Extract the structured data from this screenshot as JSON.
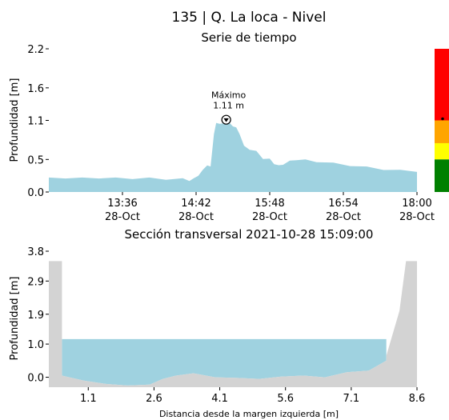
{
  "page_title": "135 | Q. La loca - Nivel",
  "chart_data": [
    {
      "type": "area",
      "title": "Serie de tiempo",
      "xlabel": "",
      "ylabel": "Profundidad [m]",
      "yticks": [
        "0.0",
        "0.5",
        "1.1",
        "1.6",
        "2.2"
      ],
      "ylim": [
        0,
        2.2
      ],
      "xticks": [
        {
          "time": "13:36",
          "date": "28-Oct"
        },
        {
          "time": "14:42",
          "date": "28-Oct"
        },
        {
          "time": "15:48",
          "date": "28-Oct"
        },
        {
          "time": "16:54",
          "date": "28-Oct"
        },
        {
          "time": "18:00",
          "date": "28-Oct"
        }
      ],
      "xlim": [
        "12:30",
        "18:00"
      ],
      "fill_color": "#9fd2e0",
      "annotation": {
        "label": "Máximo",
        "value_label": "1.11 m",
        "time": "15:09",
        "value": 1.11
      },
      "series": [
        {
          "x": [
            "12:30",
            "12:45",
            "13:00",
            "13:15",
            "13:30",
            "13:45",
            "14:00",
            "14:15",
            "14:30",
            "14:36",
            "14:40",
            "14:44",
            "14:48",
            "14:52",
            "14:55",
            "14:58",
            "15:00",
            "15:03",
            "15:06",
            "15:09",
            "15:12",
            "15:15",
            "15:18",
            "15:21",
            "15:25",
            "15:30",
            "15:36",
            "15:42",
            "15:48",
            "15:52",
            "15:56",
            "16:00",
            "16:06",
            "16:12",
            "16:20",
            "16:30",
            "16:45",
            "17:00",
            "17:15",
            "17:30",
            "17:45",
            "18:00"
          ],
          "values": [
            0.21,
            0.22,
            0.21,
            0.22,
            0.21,
            0.21,
            0.21,
            0.2,
            0.2,
            0.18,
            0.2,
            0.26,
            0.33,
            0.42,
            0.38,
            0.9,
            1.05,
            1.06,
            1.04,
            1.1,
            1.05,
            1.02,
            0.98,
            0.9,
            0.7,
            0.66,
            0.62,
            0.52,
            0.5,
            0.44,
            0.4,
            0.43,
            0.47,
            0.5,
            0.49,
            0.47,
            0.44,
            0.41,
            0.38,
            0.35,
            0.33,
            0.32
          ]
        }
      ],
      "alert_levels": [
        {
          "color": "#ff0000",
          "from": 1.1,
          "to": 2.2
        },
        {
          "color": "#ffa500",
          "from": 0.75,
          "to": 1.1
        },
        {
          "color": "#ffff00",
          "from": 0.5,
          "to": 0.75
        },
        {
          "color": "#008000",
          "from": 0.0,
          "to": 0.5
        }
      ],
      "current_level_marker": 1.1
    },
    {
      "type": "area",
      "title": "Sección transversal 2021-10-28 15:09:00",
      "xlabel": "Distancia desde la margen izquierda [m]",
      "ylabel": "Profundidad [m]",
      "yticks": [
        "0.0",
        "1.0",
        "1.9",
        "2.9",
        "3.8"
      ],
      "ylim": [
        -0.3,
        3.8
      ],
      "xticks": [
        "1.1",
        "2.6",
        "4.1",
        "5.6",
        "7.1",
        "8.6"
      ],
      "xlim": [
        0.2,
        8.6
      ],
      "water_level": 1.15,
      "water_color": "#9fd2e0",
      "ground_color": "#d3d3d3",
      "ground": {
        "x": [
          0.2,
          0.5,
          0.5,
          1.0,
          1.5,
          2.0,
          2.5,
          2.8,
          3.1,
          3.5,
          4.0,
          4.5,
          5.0,
          5.5,
          6.0,
          6.5,
          7.0,
          7.5,
          7.9,
          7.9,
          8.2,
          8.35,
          8.6
        ],
        "y": [
          3.5,
          3.5,
          0.05,
          -0.1,
          -0.2,
          -0.25,
          -0.22,
          -0.05,
          0.05,
          0.12,
          0.0,
          -0.02,
          -0.05,
          0.02,
          0.05,
          0.0,
          0.15,
          0.2,
          0.5,
          0.65,
          2.0,
          3.5,
          3.5
        ]
      }
    }
  ]
}
